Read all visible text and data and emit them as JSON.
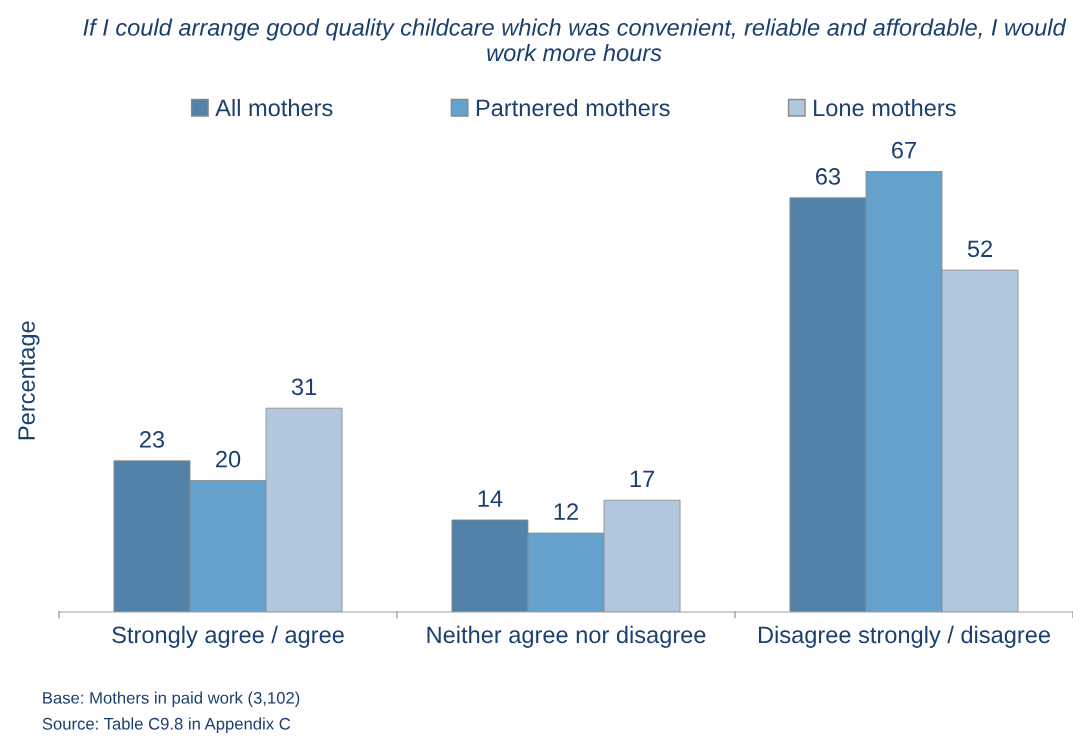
{
  "chart_data": {
    "type": "bar",
    "title": "If I could arrange good quality childcare which was convenient, reliable and affordable, I would work more hours",
    "ylabel": "Percentage",
    "categories": [
      "Strongly agree / agree",
      "Neither agree nor disagree",
      "Disagree strongly / disagree"
    ],
    "series": [
      {
        "name": "All mothers",
        "color": "#5282a7",
        "values": [
          23,
          14,
          63
        ]
      },
      {
        "name": "Partnered mothers",
        "color": "#65a1cd",
        "values": [
          20,
          12,
          67
        ]
      },
      {
        "name": "Lone mothers",
        "color": "#b2c7de",
        "values": [
          31,
          17,
          52
        ]
      }
    ],
    "data_labels": true,
    "legend": "top",
    "grid": false,
    "tick_labels": "x",
    "annotations": [
      "Base: Mothers in paid work (3,102)",
      "Source: Table C9.8 in Appendix C"
    ]
  }
}
